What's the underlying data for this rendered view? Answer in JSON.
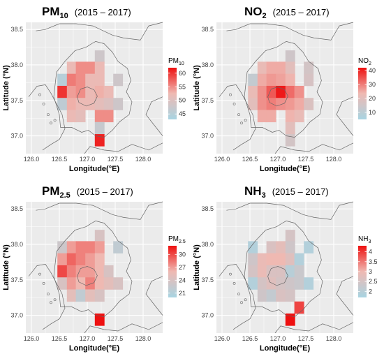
{
  "figure": {
    "panels": [
      {
        "id": "pm10",
        "title_main": "PM",
        "title_sub": "10",
        "period": "(2015 – 2017)",
        "legend_title_main": "PM",
        "legend_title_sub": "10"
      },
      {
        "id": "no2",
        "title_main": "NO",
        "title_sub": "2",
        "period": "(2015 – 2017)",
        "legend_title_main": "NO",
        "legend_title_sub": "2"
      },
      {
        "id": "pm25",
        "title_main": "PM",
        "title_sub": "2.5",
        "period": "(2015 – 2017)",
        "legend_title_main": "PM",
        "legend_title_sub": "2.5"
      },
      {
        "id": "nh3",
        "title_main": "NH",
        "title_sub": "3",
        "period": "(2015 – 2017)",
        "legend_title_main": "NH",
        "legend_title_sub": "3"
      }
    ],
    "colors": {
      "low": "#a8d4e2",
      "mid": "#efb9b2",
      "high": "#ee1010",
      "panel_bg": "#ebebeb",
      "grid": "#ffffff"
    }
  },
  "chart_data": [
    {
      "type": "heatmap",
      "title": "PM10 (2015 – 2017)",
      "xlabel": "Longitude(°E)",
      "ylabel": "Latitude (°N)",
      "xlim": [
        125.9,
        128.35
      ],
      "ylim": [
        36.75,
        38.6
      ],
      "xticks": [
        "126.0",
        "126.5",
        "127.0",
        "127.5",
        "128.0"
      ],
      "yticks": [
        "37.0",
        "37.5",
        "38.0",
        "38.5"
      ],
      "legend": {
        "title": "PM10",
        "ticks": [
          45,
          50,
          55,
          60
        ],
        "range": [
          43,
          62
        ]
      },
      "cells": [
        {
          "lon": 127.22,
          "lat": 38.12,
          "v": 48
        },
        {
          "lon": 126.72,
          "lat": 37.96,
          "v": 52
        },
        {
          "lon": 126.88,
          "lat": 37.96,
          "v": 55
        },
        {
          "lon": 127.05,
          "lat": 37.96,
          "v": 55
        },
        {
          "lon": 127.22,
          "lat": 37.96,
          "v": 52
        },
        {
          "lon": 126.55,
          "lat": 37.79,
          "v": 45
        },
        {
          "lon": 126.72,
          "lat": 37.79,
          "v": 56
        },
        {
          "lon": 126.88,
          "lat": 37.79,
          "v": 55
        },
        {
          "lon": 127.05,
          "lat": 37.79,
          "v": 52
        },
        {
          "lon": 127.22,
          "lat": 37.79,
          "v": 52
        },
        {
          "lon": 127.55,
          "lat": 37.79,
          "v": 48
        },
        {
          "lon": 126.55,
          "lat": 37.62,
          "v": 60
        },
        {
          "lon": 126.72,
          "lat": 37.62,
          "v": 54
        },
        {
          "lon": 126.88,
          "lat": 37.62,
          "v": 55
        },
        {
          "lon": 127.05,
          "lat": 37.62,
          "v": 52
        },
        {
          "lon": 127.22,
          "lat": 37.62,
          "v": 53
        },
        {
          "lon": 127.38,
          "lat": 37.62,
          "v": 52
        },
        {
          "lon": 126.55,
          "lat": 37.45,
          "v": 46
        },
        {
          "lon": 126.72,
          "lat": 37.45,
          "v": 53
        },
        {
          "lon": 126.88,
          "lat": 37.45,
          "v": 52
        },
        {
          "lon": 127.05,
          "lat": 37.45,
          "v": 52
        },
        {
          "lon": 127.22,
          "lat": 37.45,
          "v": 51
        },
        {
          "lon": 127.38,
          "lat": 37.45,
          "v": 50
        },
        {
          "lon": 127.55,
          "lat": 37.45,
          "v": 48
        },
        {
          "lon": 126.72,
          "lat": 37.28,
          "v": 52
        },
        {
          "lon": 126.88,
          "lat": 37.28,
          "v": 51
        },
        {
          "lon": 127.22,
          "lat": 37.28,
          "v": 55
        },
        {
          "lon": 127.38,
          "lat": 37.28,
          "v": 55
        },
        {
          "lon": 127.22,
          "lat": 37.11,
          "v": 47
        },
        {
          "lon": 127.22,
          "lat": 36.94,
          "v": 61
        }
      ]
    },
    {
      "type": "heatmap",
      "title": "NO2 (2015 – 2017)",
      "xlabel": "Longitude(°E)",
      "ylabel": "Latitude (°N)",
      "xlim": [
        125.9,
        128.35
      ],
      "ylim": [
        36.75,
        38.6
      ],
      "xticks": [
        "126.0",
        "126.5",
        "127.0",
        "127.5",
        "128.0"
      ],
      "yticks": [
        "37.0",
        "37.5",
        "38.0",
        "38.5"
      ],
      "legend": {
        "title": "NO2",
        "ticks": [
          10,
          20,
          30,
          40
        ],
        "range": [
          5,
          42
        ]
      },
      "cells": [
        {
          "lon": 127.22,
          "lat": 38.12,
          "v": 15
        },
        {
          "lon": 126.72,
          "lat": 37.96,
          "v": 22
        },
        {
          "lon": 126.88,
          "lat": 37.96,
          "v": 25
        },
        {
          "lon": 127.05,
          "lat": 37.96,
          "v": 25
        },
        {
          "lon": 127.22,
          "lat": 37.96,
          "v": 20
        },
        {
          "lon": 127.55,
          "lat": 37.96,
          "v": 16
        },
        {
          "lon": 126.55,
          "lat": 37.79,
          "v": 12
        },
        {
          "lon": 126.72,
          "lat": 37.79,
          "v": 25
        },
        {
          "lon": 126.88,
          "lat": 37.79,
          "v": 27
        },
        {
          "lon": 127.05,
          "lat": 37.79,
          "v": 26
        },
        {
          "lon": 127.22,
          "lat": 37.79,
          "v": 24
        },
        {
          "lon": 127.55,
          "lat": 37.79,
          "v": 17
        },
        {
          "lon": 126.55,
          "lat": 37.62,
          "v": 22
        },
        {
          "lon": 126.72,
          "lat": 37.62,
          "v": 28
        },
        {
          "lon": 126.88,
          "lat": 37.62,
          "v": 34
        },
        {
          "lon": 127.05,
          "lat": 37.62,
          "v": 41
        },
        {
          "lon": 127.22,
          "lat": 37.62,
          "v": 32
        },
        {
          "lon": 127.38,
          "lat": 37.62,
          "v": 28
        },
        {
          "lon": 126.55,
          "lat": 37.45,
          "v": 20
        },
        {
          "lon": 126.72,
          "lat": 37.45,
          "v": 28
        },
        {
          "lon": 126.88,
          "lat": 37.45,
          "v": 30
        },
        {
          "lon": 127.05,
          "lat": 37.45,
          "v": 28
        },
        {
          "lon": 127.22,
          "lat": 37.45,
          "v": 27
        },
        {
          "lon": 127.38,
          "lat": 37.45,
          "v": 25
        },
        {
          "lon": 127.55,
          "lat": 37.45,
          "v": 18
        },
        {
          "lon": 126.72,
          "lat": 37.28,
          "v": 25
        },
        {
          "lon": 126.88,
          "lat": 37.28,
          "v": 25
        },
        {
          "lon": 127.22,
          "lat": 37.28,
          "v": 24
        },
        {
          "lon": 127.38,
          "lat": 37.28,
          "v": 22
        },
        {
          "lon": 127.22,
          "lat": 37.11,
          "v": 20
        },
        {
          "lon": 127.22,
          "lat": 36.94,
          "v": 16
        }
      ]
    },
    {
      "type": "heatmap",
      "title": "PM2.5 (2015 – 2017)",
      "xlabel": "Longitude(°E)",
      "ylabel": "Latitude (°N)",
      "xlim": [
        125.9,
        128.35
      ],
      "ylim": [
        36.75,
        38.6
      ],
      "xticks": [
        "126.0",
        "126.5",
        "127.0",
        "127.5",
        "128.0"
      ],
      "yticks": [
        "37.0",
        "37.5",
        "38.0",
        "38.5"
      ],
      "legend": {
        "title": "PM2.5",
        "ticks": [
          21,
          24,
          27,
          30
        ],
        "range": [
          20,
          32
        ]
      },
      "cells": [
        {
          "lon": 127.22,
          "lat": 38.12,
          "v": 24
        },
        {
          "lon": 126.55,
          "lat": 37.96,
          "v": 23
        },
        {
          "lon": 126.72,
          "lat": 37.96,
          "v": 27
        },
        {
          "lon": 126.88,
          "lat": 37.96,
          "v": 28
        },
        {
          "lon": 127.05,
          "lat": 37.96,
          "v": 28
        },
        {
          "lon": 127.22,
          "lat": 37.96,
          "v": 27
        },
        {
          "lon": 127.55,
          "lat": 37.96,
          "v": 22
        },
        {
          "lon": 126.55,
          "lat": 37.79,
          "v": 27
        },
        {
          "lon": 126.72,
          "lat": 37.79,
          "v": 29
        },
        {
          "lon": 126.88,
          "lat": 37.79,
          "v": 28
        },
        {
          "lon": 127.05,
          "lat": 37.79,
          "v": 27
        },
        {
          "lon": 127.22,
          "lat": 37.79,
          "v": 26
        },
        {
          "lon": 126.55,
          "lat": 37.62,
          "v": 30
        },
        {
          "lon": 126.72,
          "lat": 37.62,
          "v": 28
        },
        {
          "lon": 126.88,
          "lat": 37.62,
          "v": 27
        },
        {
          "lon": 127.05,
          "lat": 37.62,
          "v": 27
        },
        {
          "lon": 127.22,
          "lat": 37.62,
          "v": 26
        },
        {
          "lon": 127.38,
          "lat": 37.62,
          "v": 24
        },
        {
          "lon": 126.55,
          "lat": 37.45,
          "v": 24
        },
        {
          "lon": 126.72,
          "lat": 37.45,
          "v": 27
        },
        {
          "lon": 126.88,
          "lat": 37.45,
          "v": 26
        },
        {
          "lon": 127.05,
          "lat": 37.45,
          "v": 28
        },
        {
          "lon": 127.22,
          "lat": 37.45,
          "v": 26
        },
        {
          "lon": 127.38,
          "lat": 37.45,
          "v": 25
        },
        {
          "lon": 127.55,
          "lat": 37.45,
          "v": 24
        },
        {
          "lon": 126.72,
          "lat": 37.28,
          "v": 25
        },
        {
          "lon": 126.88,
          "lat": 37.28,
          "v": 22
        },
        {
          "lon": 127.05,
          "lat": 37.28,
          "v": 25
        },
        {
          "lon": 127.22,
          "lat": 37.28,
          "v": 24
        },
        {
          "lon": 127.22,
          "lat": 36.94,
          "v": 32
        }
      ]
    },
    {
      "type": "heatmap",
      "title": "NH3 (2015 – 2017)",
      "xlabel": "Longitude(°E)",
      "ylabel": "Latitude (°N)",
      "xlim": [
        125.9,
        128.35
      ],
      "ylim": [
        36.75,
        38.6
      ],
      "xticks": [
        "126.0",
        "126.5",
        "127.0",
        "127.5",
        "128.0"
      ],
      "yticks": [
        "37.0",
        "37.5",
        "38.0",
        "38.5"
      ],
      "legend": {
        "title": "NH3",
        "ticks": [
          2.0,
          2.5,
          3.0,
          3.5,
          4.0
        ],
        "range": [
          1.7,
          4.3
        ]
      },
      "cells": [
        {
          "lon": 127.22,
          "lat": 38.12,
          "v": 2.5
        },
        {
          "lon": 126.55,
          "lat": 37.96,
          "v": 1.9
        },
        {
          "lon": 126.88,
          "lat": 37.96,
          "v": 2.6
        },
        {
          "lon": 127.05,
          "lat": 37.96,
          "v": 2.8
        },
        {
          "lon": 127.22,
          "lat": 37.96,
          "v": 2.4
        },
        {
          "lon": 127.55,
          "lat": 37.96,
          "v": 1.9
        },
        {
          "lon": 126.55,
          "lat": 37.79,
          "v": 2.4
        },
        {
          "lon": 126.72,
          "lat": 37.79,
          "v": 2.9
        },
        {
          "lon": 126.88,
          "lat": 37.79,
          "v": 3.0
        },
        {
          "lon": 127.05,
          "lat": 37.79,
          "v": 3.0
        },
        {
          "lon": 127.22,
          "lat": 37.79,
          "v": 2.7
        },
        {
          "lon": 127.38,
          "lat": 37.79,
          "v": 1.9
        },
        {
          "lon": 126.55,
          "lat": 37.62,
          "v": 2.5
        },
        {
          "lon": 126.72,
          "lat": 37.62,
          "v": 2.9
        },
        {
          "lon": 126.88,
          "lat": 37.62,
          "v": 2.6
        },
        {
          "lon": 127.05,
          "lat": 37.62,
          "v": 2.6
        },
        {
          "lon": 127.22,
          "lat": 37.62,
          "v": 2.0
        },
        {
          "lon": 127.38,
          "lat": 37.62,
          "v": 2.3
        },
        {
          "lon": 126.55,
          "lat": 37.45,
          "v": 1.9
        },
        {
          "lon": 126.72,
          "lat": 37.45,
          "v": 2.5
        },
        {
          "lon": 126.88,
          "lat": 37.45,
          "v": 2.7
        },
        {
          "lon": 127.05,
          "lat": 37.45,
          "v": 2.5
        },
        {
          "lon": 127.22,
          "lat": 37.45,
          "v": 2.4
        },
        {
          "lon": 127.38,
          "lat": 37.45,
          "v": 2.3
        },
        {
          "lon": 127.55,
          "lat": 37.45,
          "v": 1.9
        },
        {
          "lon": 126.72,
          "lat": 37.28,
          "v": 2.4
        },
        {
          "lon": 126.88,
          "lat": 37.28,
          "v": 2.2
        },
        {
          "lon": 127.05,
          "lat": 37.28,
          "v": 2.6
        },
        {
          "lon": 127.22,
          "lat": 37.28,
          "v": 2.5
        },
        {
          "lon": 127.38,
          "lat": 37.11,
          "v": 3.9
        },
        {
          "lon": 127.22,
          "lat": 36.94,
          "v": 4.3
        }
      ]
    }
  ]
}
